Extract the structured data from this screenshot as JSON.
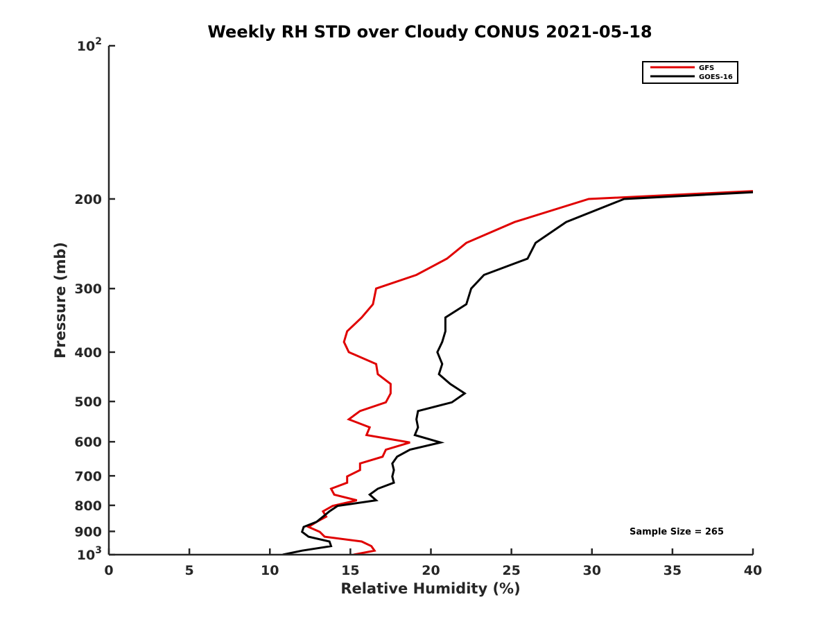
{
  "chart_data": {
    "type": "line",
    "title": "Weekly RH STD over Cloudy CONUS 2021-05-18",
    "xlabel": "Relative Humidity (%)",
    "ylabel": "Pressure (mb)",
    "xlim": [
      0,
      40
    ],
    "ylim": [
      100,
      1000
    ],
    "y_scale": "log",
    "y_reversed": true,
    "grid": false,
    "legend_position": "top-right",
    "x_ticks": [
      "0",
      "5",
      "10",
      "15",
      "20",
      "25",
      "30",
      "35",
      "40"
    ],
    "y_ticks": [
      {
        "value": 100,
        "label": "10",
        "sup": "2"
      },
      {
        "value": 200,
        "label": "200",
        "sup": ""
      },
      {
        "value": 300,
        "label": "300",
        "sup": ""
      },
      {
        "value": 400,
        "label": "400",
        "sup": ""
      },
      {
        "value": 500,
        "label": "500",
        "sup": ""
      },
      {
        "value": 600,
        "label": "600",
        "sup": ""
      },
      {
        "value": 700,
        "label": "700",
        "sup": ""
      },
      {
        "value": 800,
        "label": "800",
        "sup": ""
      },
      {
        "value": 900,
        "label": "900",
        "sup": ""
      },
      {
        "value": 1000,
        "label": "10",
        "sup": "3"
      }
    ],
    "annotation": "Sample Size = 265",
    "series": [
      {
        "name": "GFS",
        "color": "#e00000",
        "points": [
          [
            40.0,
            193
          ],
          [
            29.8,
            200
          ],
          [
            25.2,
            222
          ],
          [
            22.2,
            244
          ],
          [
            21.0,
            262
          ],
          [
            19.1,
            282
          ],
          [
            16.6,
            300
          ],
          [
            16.4,
            322
          ],
          [
            15.7,
            342
          ],
          [
            14.8,
            364
          ],
          [
            14.6,
            382
          ],
          [
            14.9,
            400
          ],
          [
            16.6,
            422
          ],
          [
            16.7,
            442
          ],
          [
            17.5,
            462
          ],
          [
            17.5,
            482
          ],
          [
            17.2,
            502
          ],
          [
            15.6,
            522
          ],
          [
            14.9,
            542
          ],
          [
            16.2,
            562
          ],
          [
            16.0,
            582
          ],
          [
            18.7,
            602
          ],
          [
            17.2,
            622
          ],
          [
            17.0,
            642
          ],
          [
            15.6,
            662
          ],
          [
            15.6,
            682
          ],
          [
            14.8,
            702
          ],
          [
            14.8,
            722
          ],
          [
            13.8,
            742
          ],
          [
            14.0,
            762
          ],
          [
            15.4,
            782
          ],
          [
            13.9,
            802
          ],
          [
            13.3,
            822
          ],
          [
            13.5,
            842
          ],
          [
            12.9,
            862
          ],
          [
            12.4,
            882
          ],
          [
            13.1,
            902
          ],
          [
            13.4,
            922
          ],
          [
            15.7,
            942
          ],
          [
            16.3,
            962
          ],
          [
            16.5,
            982
          ],
          [
            15.2,
            1000
          ]
        ]
      },
      {
        "name": "GOES-16",
        "color": "#000000",
        "points": [
          [
            40.0,
            194
          ],
          [
            32.0,
            200
          ],
          [
            28.4,
            222
          ],
          [
            26.5,
            244
          ],
          [
            26.0,
            262
          ],
          [
            23.3,
            282
          ],
          [
            22.5,
            300
          ],
          [
            22.2,
            322
          ],
          [
            20.9,
            342
          ],
          [
            20.9,
            364
          ],
          [
            20.7,
            382
          ],
          [
            20.4,
            400
          ],
          [
            20.7,
            422
          ],
          [
            20.5,
            442
          ],
          [
            21.2,
            462
          ],
          [
            22.1,
            482
          ],
          [
            21.3,
            502
          ],
          [
            19.2,
            522
          ],
          [
            19.1,
            542
          ],
          [
            19.2,
            562
          ],
          [
            19.0,
            582
          ],
          [
            20.6,
            602
          ],
          [
            18.7,
            622
          ],
          [
            17.9,
            642
          ],
          [
            17.6,
            662
          ],
          [
            17.7,
            682
          ],
          [
            17.6,
            702
          ],
          [
            17.7,
            722
          ],
          [
            16.7,
            742
          ],
          [
            16.2,
            762
          ],
          [
            16.6,
            782
          ],
          [
            14.2,
            802
          ],
          [
            13.7,
            822
          ],
          [
            13.3,
            842
          ],
          [
            12.9,
            862
          ],
          [
            12.1,
            882
          ],
          [
            12.0,
            902
          ],
          [
            12.4,
            922
          ],
          [
            13.7,
            942
          ],
          [
            13.8,
            962
          ],
          [
            12.0,
            982
          ],
          [
            10.8,
            1000
          ]
        ]
      }
    ]
  }
}
